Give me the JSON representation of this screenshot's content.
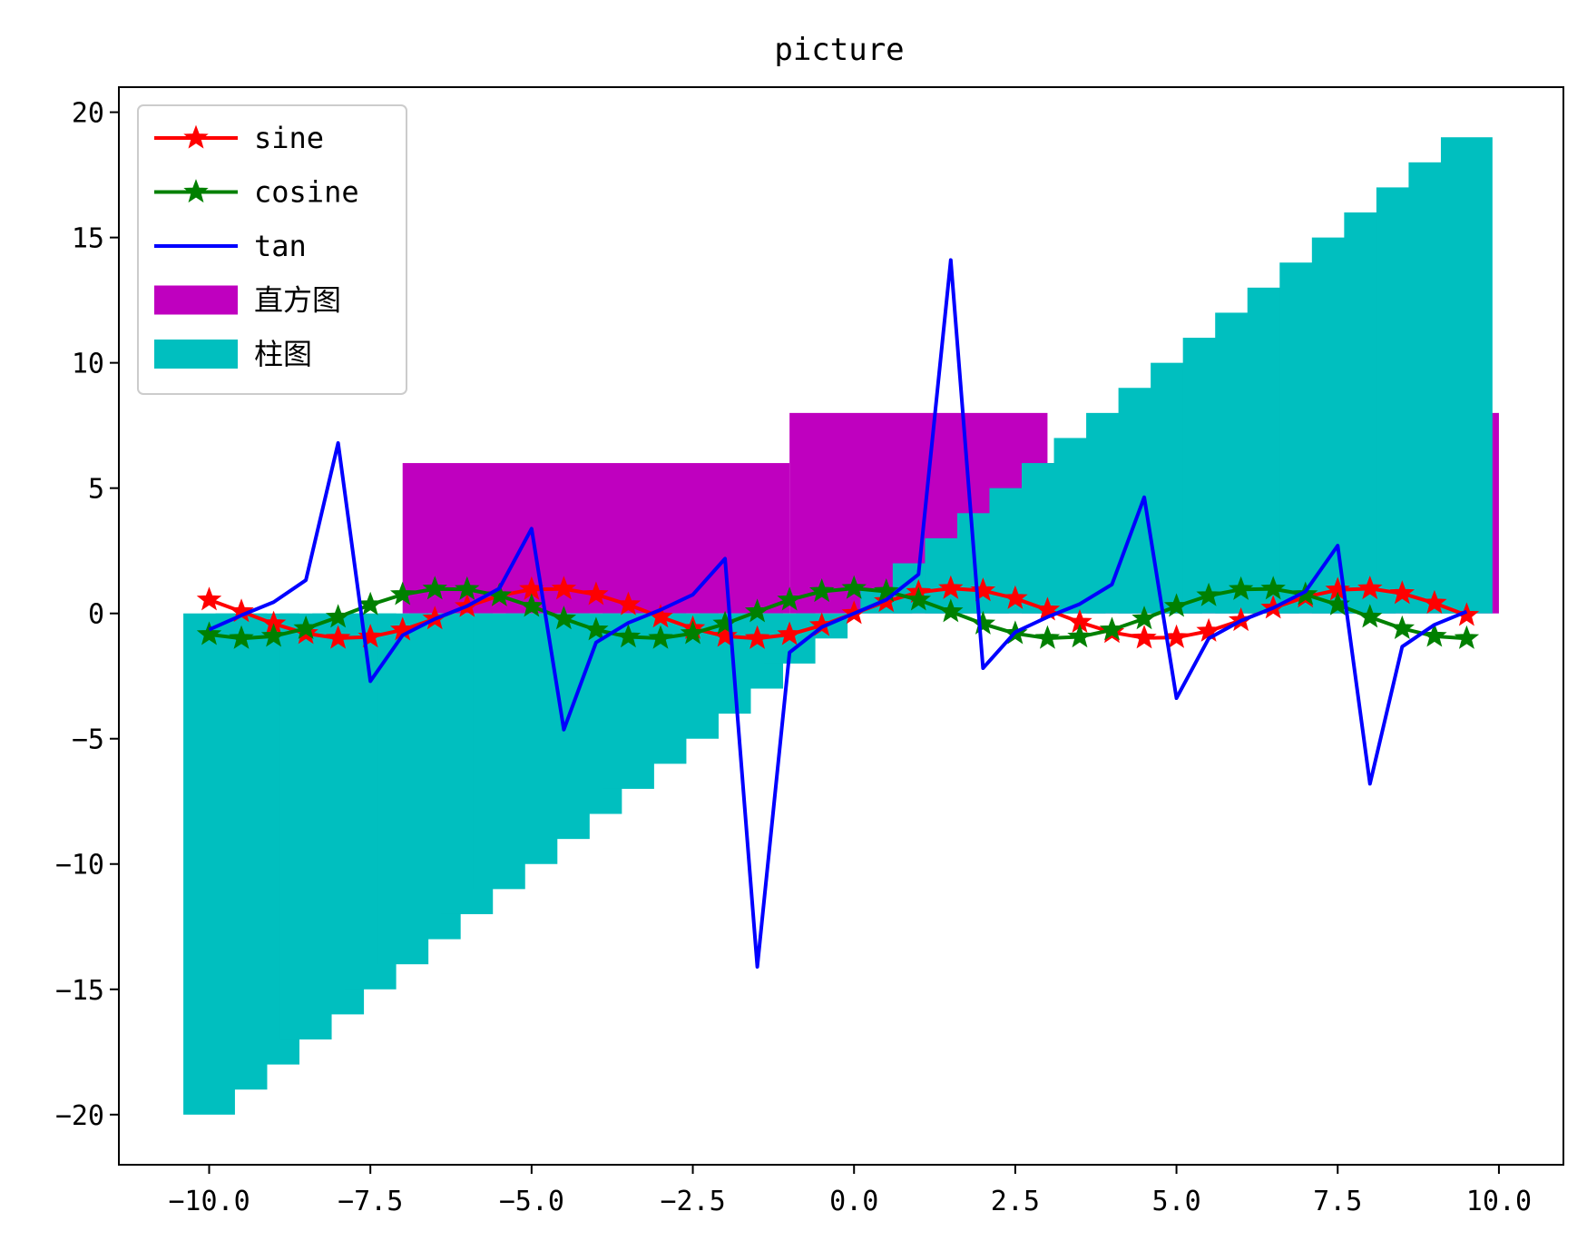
{
  "chart_data": {
    "type": "line",
    "title": "picture",
    "xlabel": "",
    "ylabel": "",
    "xlim": [
      -11.4,
      11.0
    ],
    "ylim": [
      -22.0,
      21.0
    ],
    "grid": false,
    "legend_position": "top-left",
    "x_ticks": [
      -10.0,
      -7.5,
      -5.0,
      -2.5,
      0.0,
      2.5,
      5.0,
      7.5,
      10.0
    ],
    "x_tick_labels": [
      "−10.0",
      "−7.5",
      "−5.0",
      "−2.5",
      "0.0",
      "2.5",
      "5.0",
      "7.5",
      "10.0"
    ],
    "y_ticks": [
      20,
      15,
      10,
      5,
      0,
      -5,
      -10,
      -15,
      -20
    ],
    "y_tick_labels": [
      "20",
      "15",
      "10",
      "5",
      "0",
      "−5",
      "−10",
      "−15",
      "−20"
    ],
    "x": [
      -10.0,
      -9.5,
      -9.0,
      -8.5,
      -8.0,
      -7.5,
      -7.0,
      -6.5,
      -6.0,
      -5.5,
      -5.0,
      -4.5,
      -4.0,
      -3.5,
      -3.0,
      -2.5,
      -2.0,
      -1.5,
      -1.0,
      -0.5,
      0.0,
      0.5,
      1.0,
      1.5,
      2.0,
      2.5,
      3.0,
      3.5,
      4.0,
      4.5,
      5.0,
      5.5,
      6.0,
      6.5,
      7.0,
      7.5,
      8.0,
      8.5,
      9.0,
      9.5
    ],
    "series": [
      {
        "name": "sine",
        "color": "#ff0000",
        "marker": "star",
        "values": [
          0.544,
          0.075,
          -0.412,
          -0.798,
          -0.989,
          -0.938,
          -0.657,
          -0.215,
          0.279,
          0.706,
          0.959,
          0.978,
          0.757,
          0.351,
          -0.141,
          -0.598,
          -0.909,
          -0.997,
          -0.841,
          -0.479,
          0.0,
          0.479,
          0.841,
          0.997,
          0.909,
          0.598,
          0.141,
          -0.351,
          -0.757,
          -0.978,
          -0.959,
          -0.706,
          -0.279,
          0.215,
          0.657,
          0.938,
          0.989,
          0.798,
          0.412,
          -0.075
        ]
      },
      {
        "name": "cosine",
        "color": "#008000",
        "marker": "star",
        "values": [
          -0.839,
          -0.997,
          -0.911,
          -0.602,
          -0.146,
          0.347,
          0.754,
          0.977,
          0.96,
          0.709,
          0.284,
          -0.211,
          -0.654,
          -0.936,
          -0.99,
          -0.801,
          -0.416,
          0.071,
          0.54,
          0.878,
          1.0,
          0.878,
          0.54,
          0.071,
          -0.416,
          -0.801,
          -0.99,
          -0.936,
          -0.654,
          -0.211,
          0.284,
          0.709,
          0.96,
          0.977,
          0.754,
          0.347,
          -0.146,
          -0.602,
          -0.911,
          -0.997
        ]
      },
      {
        "name": "tan",
        "color": "#0000ff",
        "marker": "none",
        "values": [
          -0.648,
          -0.075,
          0.452,
          1.326,
          6.8,
          -2.706,
          -0.871,
          -0.22,
          0.291,
          0.996,
          3.381,
          -4.637,
          -1.158,
          -0.375,
          0.143,
          0.747,
          2.185,
          -14.101,
          -1.557,
          -0.546,
          0.0,
          0.546,
          1.557,
          14.101,
          -2.185,
          -0.747,
          -0.143,
          0.375,
          1.158,
          4.637,
          -3.381,
          -0.996,
          -0.291,
          0.22,
          0.871,
          2.706,
          -6.8,
          -1.326,
          -0.452,
          0.075
        ]
      }
    ],
    "histogram": {
      "name": "直方图",
      "color": "#bf00bf",
      "bins": [
        {
          "x0": -7.0,
          "x1": -1.0,
          "value": 6
        },
        {
          "x0": -1.0,
          "x1": 3.0,
          "value": 8
        },
        {
          "x0": 3.0,
          "x1": 6.0,
          "value": 6
        },
        {
          "x0": 6.0,
          "x1": 10.0,
          "value": 8
        }
      ]
    },
    "bars": {
      "name": "柱图",
      "color": "#00bfbf",
      "width": 0.8,
      "x": [
        -10.0,
        -9.5,
        -9.0,
        -8.5,
        -8.0,
        -7.5,
        -7.0,
        -6.5,
        -6.0,
        -5.5,
        -5.0,
        -4.5,
        -4.0,
        -3.5,
        -3.0,
        -2.5,
        -2.0,
        -1.5,
        -1.0,
        -0.5,
        0.0,
        0.5,
        1.0,
        1.5,
        2.0,
        2.5,
        3.0,
        3.5,
        4.0,
        4.5,
        5.0,
        5.5,
        6.0,
        6.5,
        7.0,
        7.5,
        8.0,
        8.5,
        9.0,
        9.5
      ],
      "values": [
        -20,
        -19,
        -18,
        -17,
        -16,
        -15,
        -14,
        -13,
        -12,
        -11,
        -10,
        -9,
        -8,
        -7,
        -6,
        -5,
        -4,
        -3,
        -2,
        -1,
        0,
        1,
        2,
        3,
        4,
        5,
        6,
        7,
        8,
        9,
        10,
        11,
        12,
        13,
        14,
        15,
        16,
        17,
        18,
        19
      ]
    },
    "legend_order": [
      "sine",
      "cosine",
      "tan",
      "直方图",
      "柱图"
    ]
  }
}
